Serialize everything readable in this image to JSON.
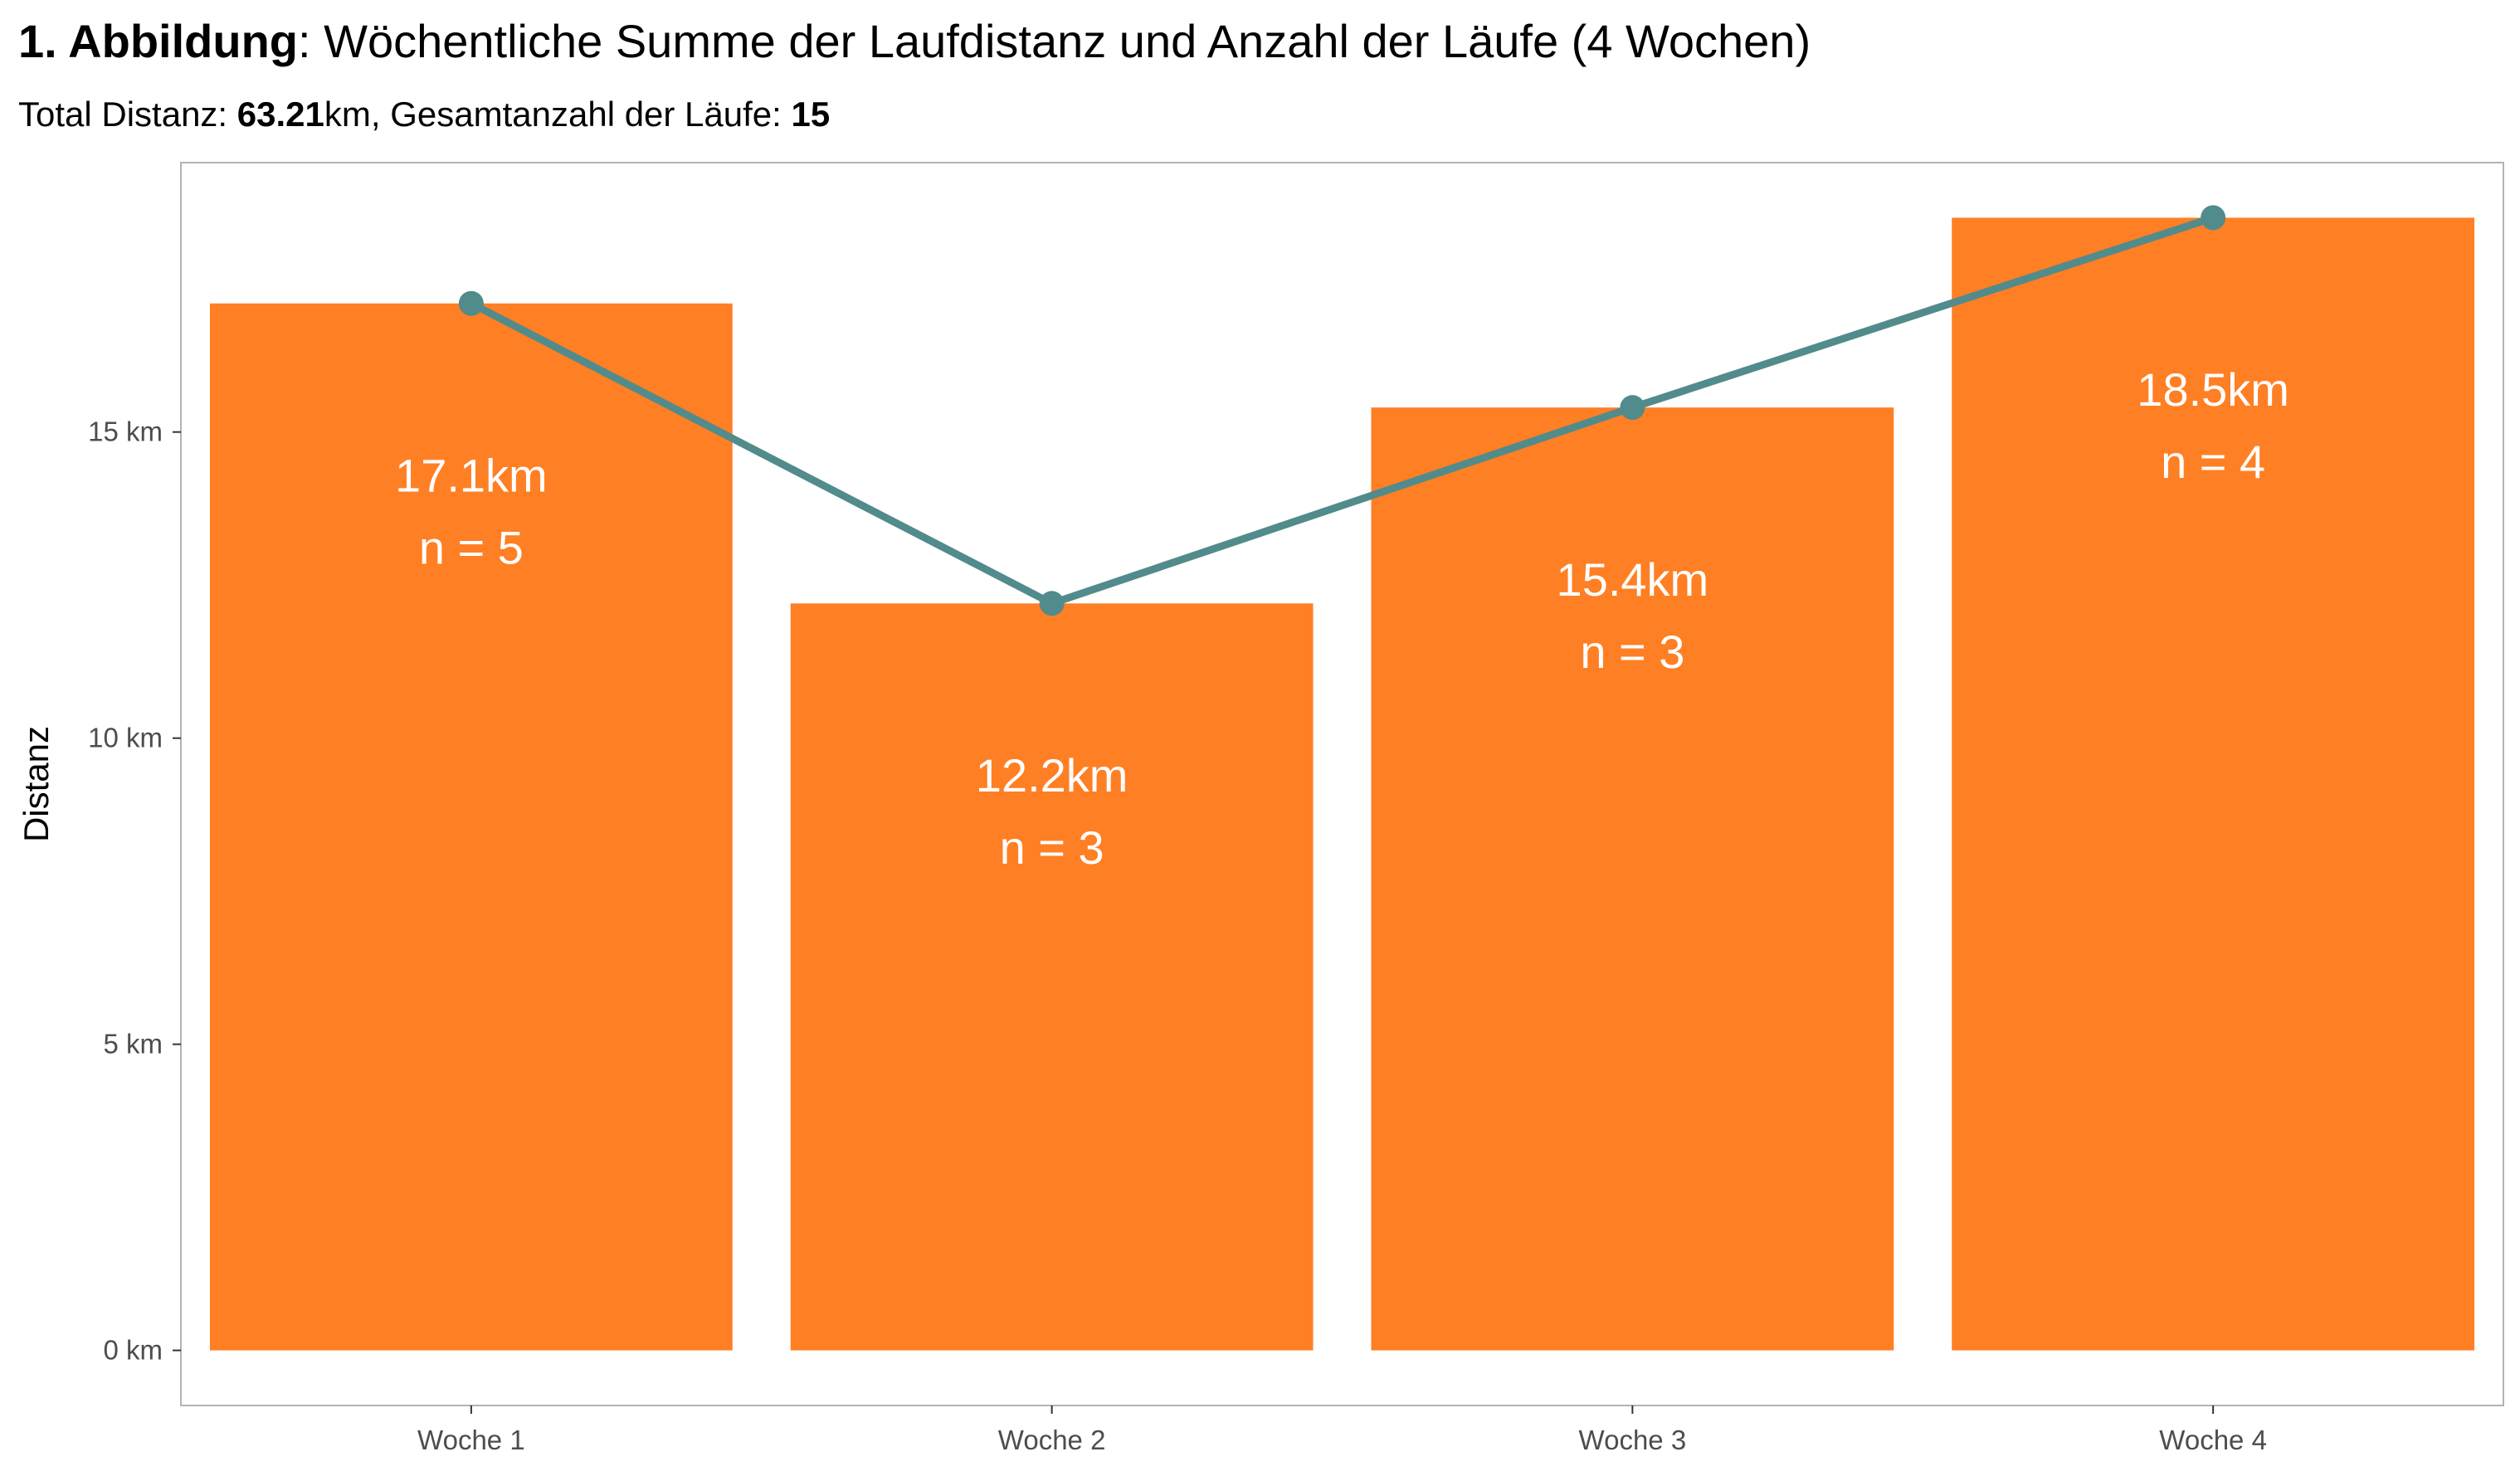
{
  "header": {
    "title_bold": "1. Abbildung",
    "title_rest": ": Wöchentliche Summe der Laufdistanz und Anzahl der Läufe (4 Wochen)",
    "subtitle_prefix": "Total Distanz: ",
    "subtitle_distance": "63.21",
    "subtitle_middle": "km, Gesamtanzahl der Läufe: ",
    "subtitle_runs": "15"
  },
  "chart_data": {
    "type": "bar",
    "overlay": "line",
    "categories": [
      "Woche 1",
      "Woche 2",
      "Woche 3",
      "Woche 4"
    ],
    "values": [
      17.1,
      12.2,
      15.4,
      18.5
    ],
    "counts": [
      5,
      3,
      3,
      4
    ],
    "bar_labels": [
      "17.1km",
      "12.2km",
      "15.4km",
      "18.5km"
    ],
    "count_labels": [
      "n = 5",
      "n = 3",
      "n = 3",
      "n = 4"
    ],
    "ylabel": "Distanz",
    "xlabel": "",
    "yticks": [
      0,
      5,
      10,
      15
    ],
    "ytick_labels": [
      "0 km",
      "5 km",
      "10 km",
      "15 km"
    ],
    "ylim": [
      -0.9,
      19.4
    ],
    "grid": false,
    "legend": "none",
    "colors": {
      "bar": "#FF7F24",
      "line": "#528B8B",
      "frame": "#b3b3b3"
    }
  }
}
